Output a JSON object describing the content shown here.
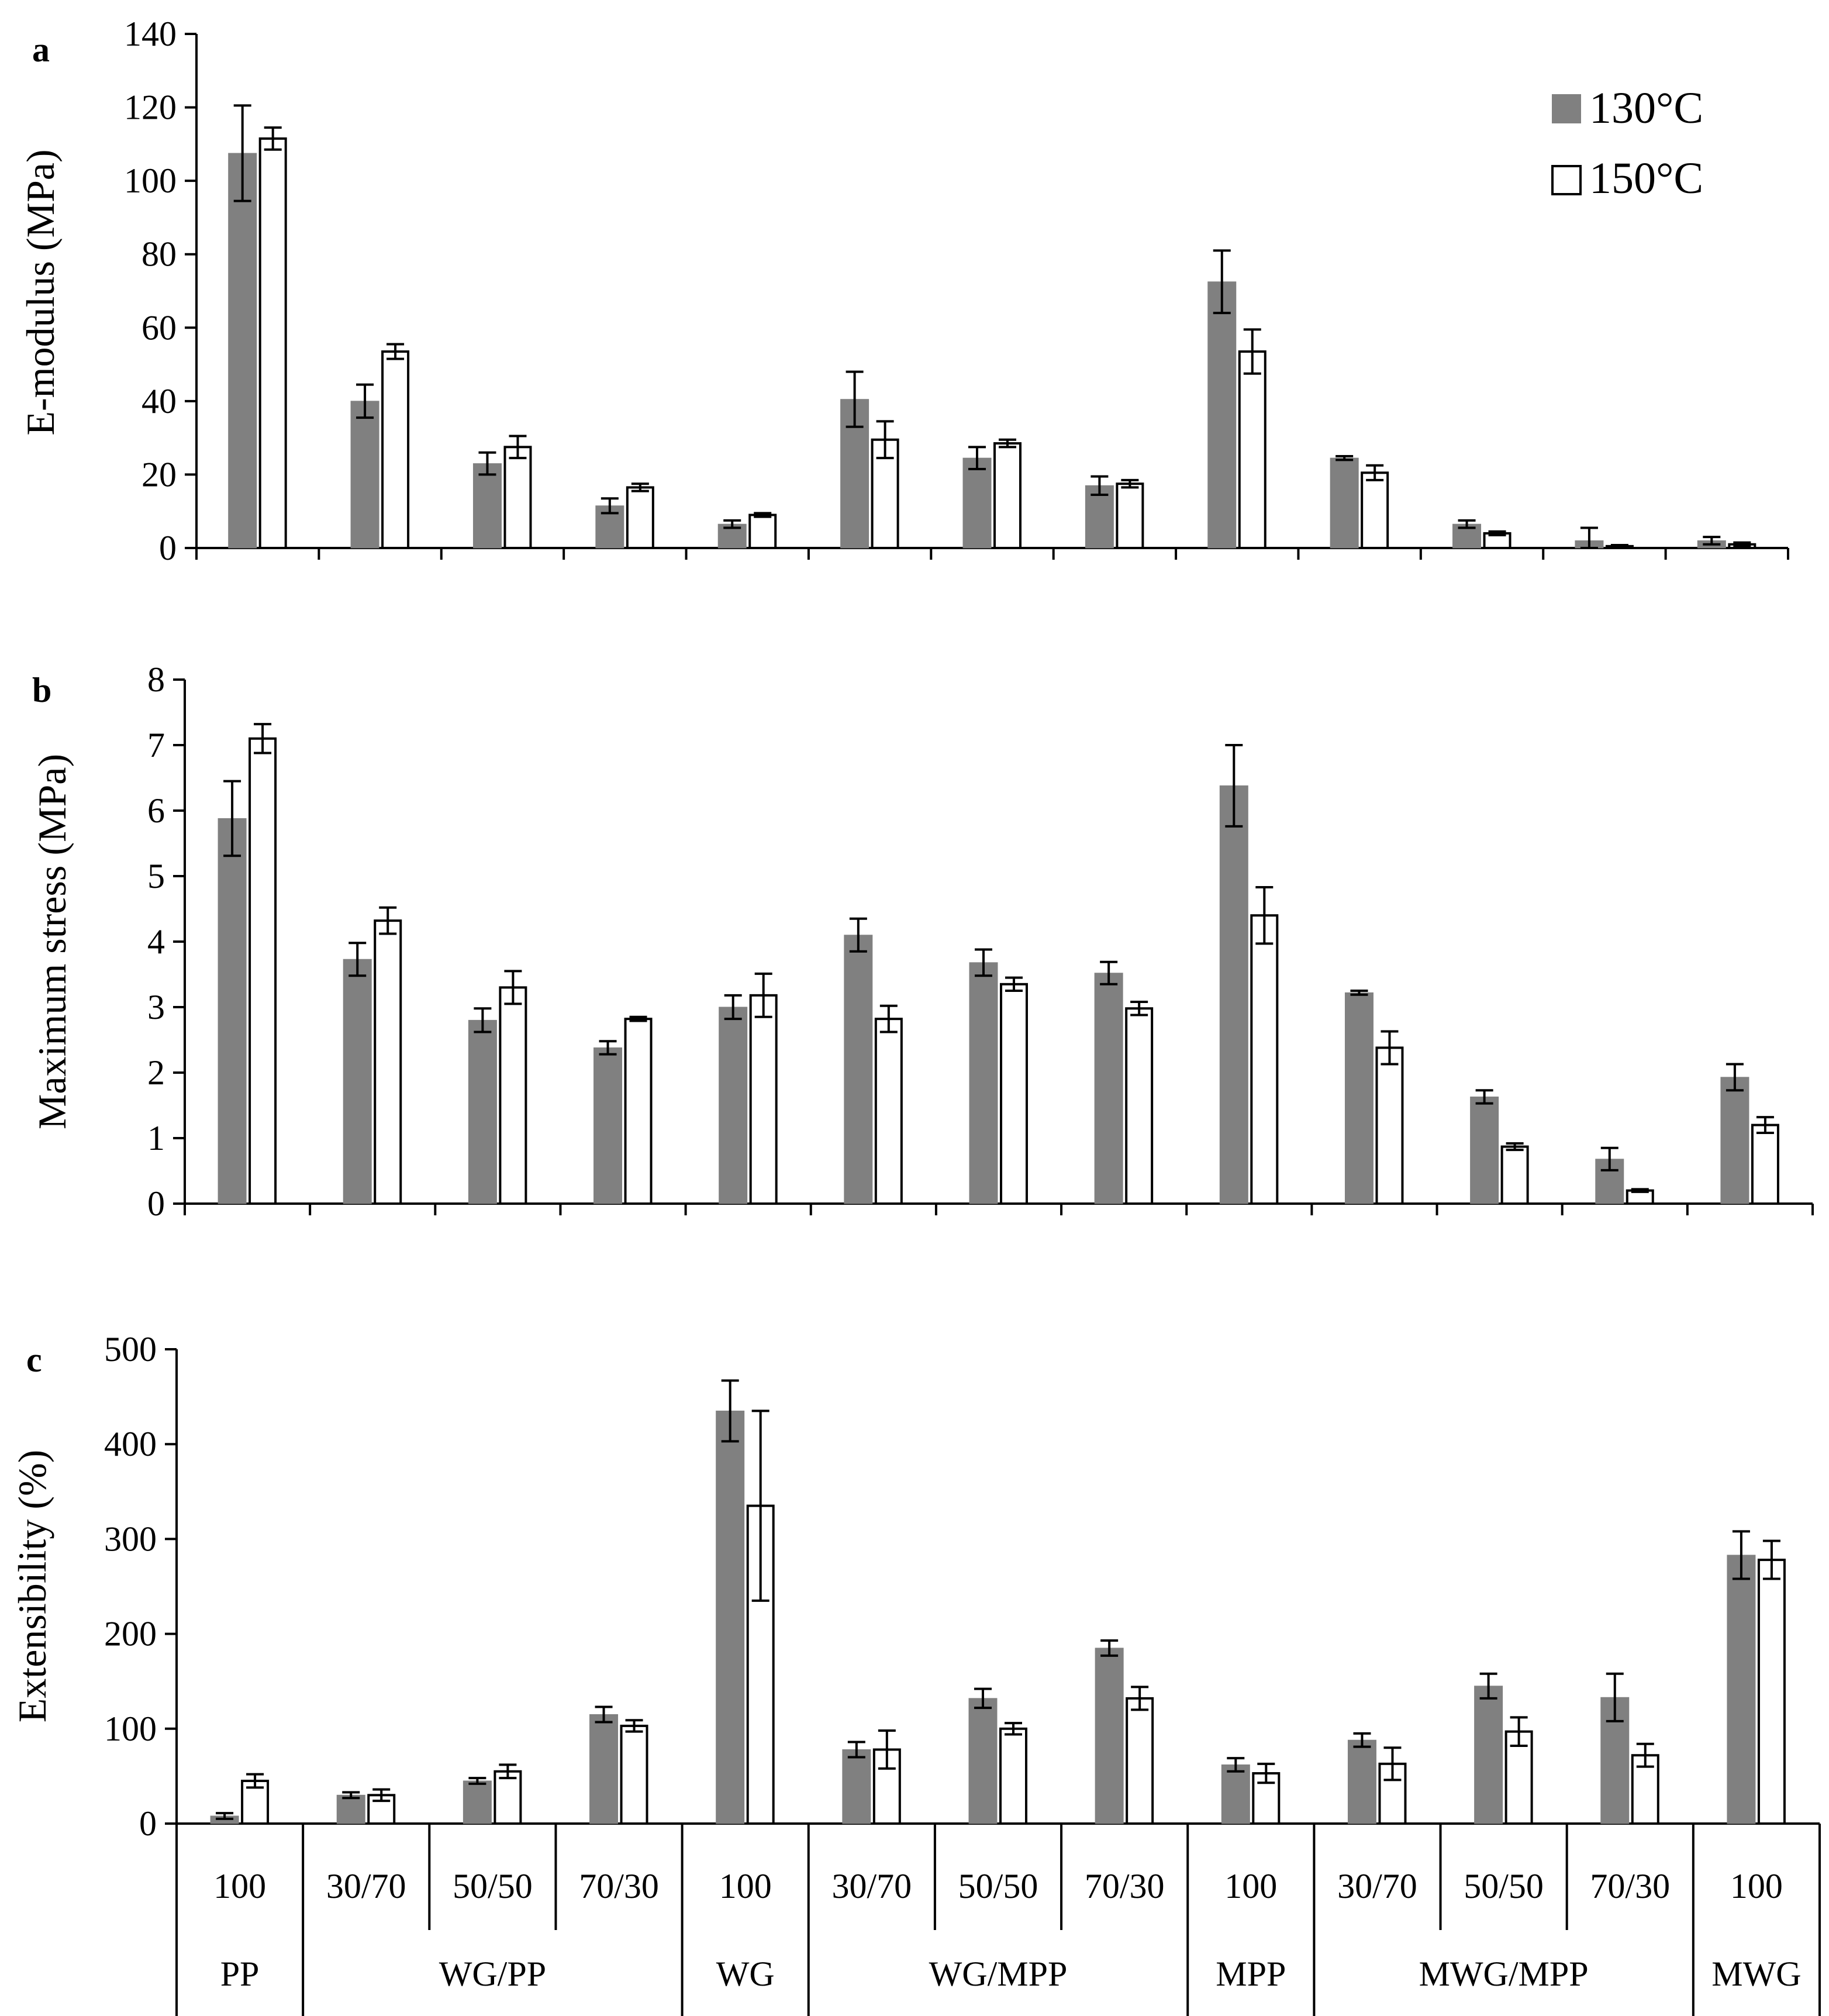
{
  "legend": [
    {
      "label": "130°C",
      "color": "#808080"
    },
    {
      "label": "150°C",
      "color": "#ffffff"
    }
  ],
  "x_axis": {
    "ratios": [
      "100",
      "30/70",
      "50/50",
      "70/30",
      "100",
      "30/70",
      "50/50",
      "70/30",
      "100",
      "30/70",
      "50/50",
      "70/30",
      "100"
    ],
    "groups": [
      {
        "label": "PP",
        "span": 1
      },
      {
        "label": "WG/PP",
        "span": 3
      },
      {
        "label": "WG",
        "span": 1
      },
      {
        "label": "WG/MPP",
        "span": 3
      },
      {
        "label": "MPP",
        "span": 1
      },
      {
        "label": "MWG/MPP",
        "span": 3
      },
      {
        "label": "MWG",
        "span": 1
      }
    ]
  },
  "chart_data": [
    {
      "type": "bar",
      "panel": "a",
      "ylabel": "E-modulus (MPa)",
      "ylim": [
        0,
        140
      ],
      "yticks": [
        0,
        20,
        40,
        60,
        80,
        100,
        120,
        140
      ],
      "categories": [
        "PP 100",
        "WG/PP 30/70",
        "WG/PP 50/50",
        "WG/PP 70/30",
        "WG 100",
        "WG/MPP 30/70",
        "WG/MPP 50/50",
        "WG/MPP 70/30",
        "MPP 100",
        "MWG/MPP 30/70",
        "MWG/MPP 50/50",
        "MWG/MPP 70/30",
        "MWG 100"
      ],
      "series": [
        {
          "name": "130°C",
          "values": [
            107.5,
            40,
            23,
            11.5,
            6.5,
            40.5,
            24.5,
            17,
            72.5,
            24.5,
            6.5,
            2,
            2
          ],
          "errors": [
            13,
            4.5,
            3,
            2,
            1,
            7.5,
            3,
            2.5,
            8.5,
            0.5,
            1,
            3.5,
            1
          ]
        },
        {
          "name": "150°C",
          "values": [
            111.5,
            53.5,
            27.5,
            16.5,
            9,
            29.5,
            28.5,
            17.5,
            53.5,
            20.5,
            4,
            0.5,
            1
          ],
          "errors": [
            3,
            2,
            3,
            1,
            0.5,
            5,
            1,
            1,
            6,
            2,
            0.5,
            0.3,
            0.5
          ]
        }
      ]
    },
    {
      "type": "bar",
      "panel": "b",
      "ylabel": "Maximum stress (MPa)",
      "ylim": [
        0,
        8
      ],
      "yticks": [
        0,
        1,
        2,
        3,
        4,
        5,
        6,
        7,
        8
      ],
      "categories": [
        "PP 100",
        "WG/PP 30/70",
        "WG/PP 50/50",
        "WG/PP 70/30",
        "WG 100",
        "WG/MPP 30/70",
        "WG/MPP 50/50",
        "WG/MPP 70/30",
        "MPP 100",
        "MWG/MPP 30/70",
        "MWG/MPP 50/50",
        "MWG/MPP 70/30",
        "MWG 100"
      ],
      "series": [
        {
          "name": "130°C",
          "values": [
            5.88,
            3.73,
            2.8,
            2.38,
            3.0,
            4.1,
            3.68,
            3.52,
            6.38,
            3.22,
            1.63,
            0.68,
            1.93
          ],
          "errors": [
            0.57,
            0.25,
            0.18,
            0.1,
            0.18,
            0.25,
            0.2,
            0.17,
            0.62,
            0.03,
            0.1,
            0.17,
            0.2
          ]
        },
        {
          "name": "150°C",
          "values": [
            7.1,
            4.32,
            3.3,
            2.82,
            3.18,
            2.82,
            3.35,
            2.98,
            4.4,
            2.38,
            0.87,
            0.2,
            1.2
          ],
          "errors": [
            0.22,
            0.2,
            0.25,
            0.03,
            0.33,
            0.2,
            0.1,
            0.1,
            0.43,
            0.25,
            0.05,
            0.02,
            0.12
          ]
        }
      ]
    },
    {
      "type": "bar",
      "panel": "c",
      "ylabel": "Extensibility (%)",
      "ylim": [
        0,
        500
      ],
      "yticks": [
        0,
        100,
        200,
        300,
        400,
        500
      ],
      "categories": [
        "PP 100",
        "WG/PP 30/70",
        "WG/PP 50/50",
        "WG/PP 70/30",
        "WG 100",
        "WG/MPP 30/70",
        "WG/MPP 50/50",
        "WG/MPP 70/30",
        "MPP 100",
        "MWG/MPP 30/70",
        "MWG/MPP 50/50",
        "MWG/MPP 70/30",
        "MWG 100"
      ],
      "series": [
        {
          "name": "130°C",
          "values": [
            8,
            30,
            45,
            115,
            435,
            78,
            132,
            185,
            62,
            88,
            145,
            133,
            283
          ],
          "errors": [
            3,
            3,
            3,
            8,
            32,
            8,
            10,
            8,
            7,
            7,
            13,
            25,
            25
          ]
        },
        {
          "name": "150°C",
          "values": [
            45,
            30,
            55,
            103,
            335,
            78,
            100,
            132,
            53,
            63,
            97,
            72,
            278
          ],
          "errors": [
            7,
            6,
            7,
            6,
            100,
            20,
            6,
            12,
            10,
            17,
            15,
            12,
            20
          ]
        }
      ]
    }
  ]
}
